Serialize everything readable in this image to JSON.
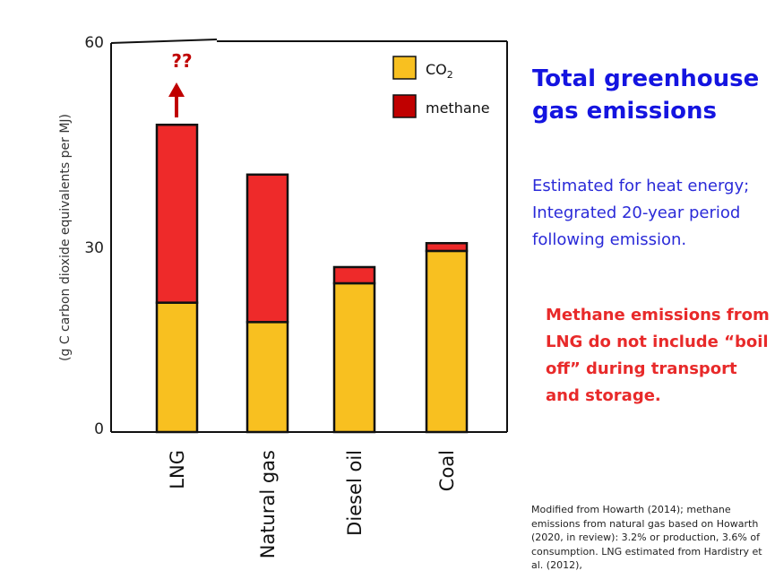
{
  "chart_data": {
    "type": "bar",
    "stacked": true,
    "categories": [
      "LNG",
      "Natural gas",
      "Diesel oil",
      "Coal"
    ],
    "series": [
      {
        "name": "CO2",
        "color": "#f8c020",
        "values": [
          20,
          17,
          23,
          28
        ]
      },
      {
        "name": "methane",
        "color": "#ee2a2a",
        "values": [
          27.5,
          22.8,
          2.5,
          1.2
        ]
      }
    ],
    "ylabel": "(g C carbon dioxide equivalents per MJ)",
    "ylim": [
      0,
      60
    ],
    "yticks": [
      0,
      30,
      60
    ],
    "legend_position": "top-right",
    "grid": false,
    "annotation": {
      "category": "LNG",
      "text": "??",
      "arrow": "up"
    }
  },
  "legend": {
    "co2_main": "CO",
    "co2_sub": "2",
    "methane": "methane"
  },
  "panel": {
    "title": "Total greenhouse gas emissions",
    "subtitle": "Estimated for heat energy; Integrated 20-year period following emission.",
    "note": "Methane emissions from LNG do not include “boil off” during transport and storage.",
    "source": "Modified from Howarth (2014); methane emissions from natural gas based on Howarth (2020, in review):  3.2% or production, 3.6% of consumption.  LNG estimated from Hardistry et al. (2012),"
  },
  "colors": {
    "co2": "#f8c020",
    "methane": "#ee2a2a",
    "title": "#1414e0",
    "note": "#e82a2a",
    "arrow": "#c00000"
  }
}
